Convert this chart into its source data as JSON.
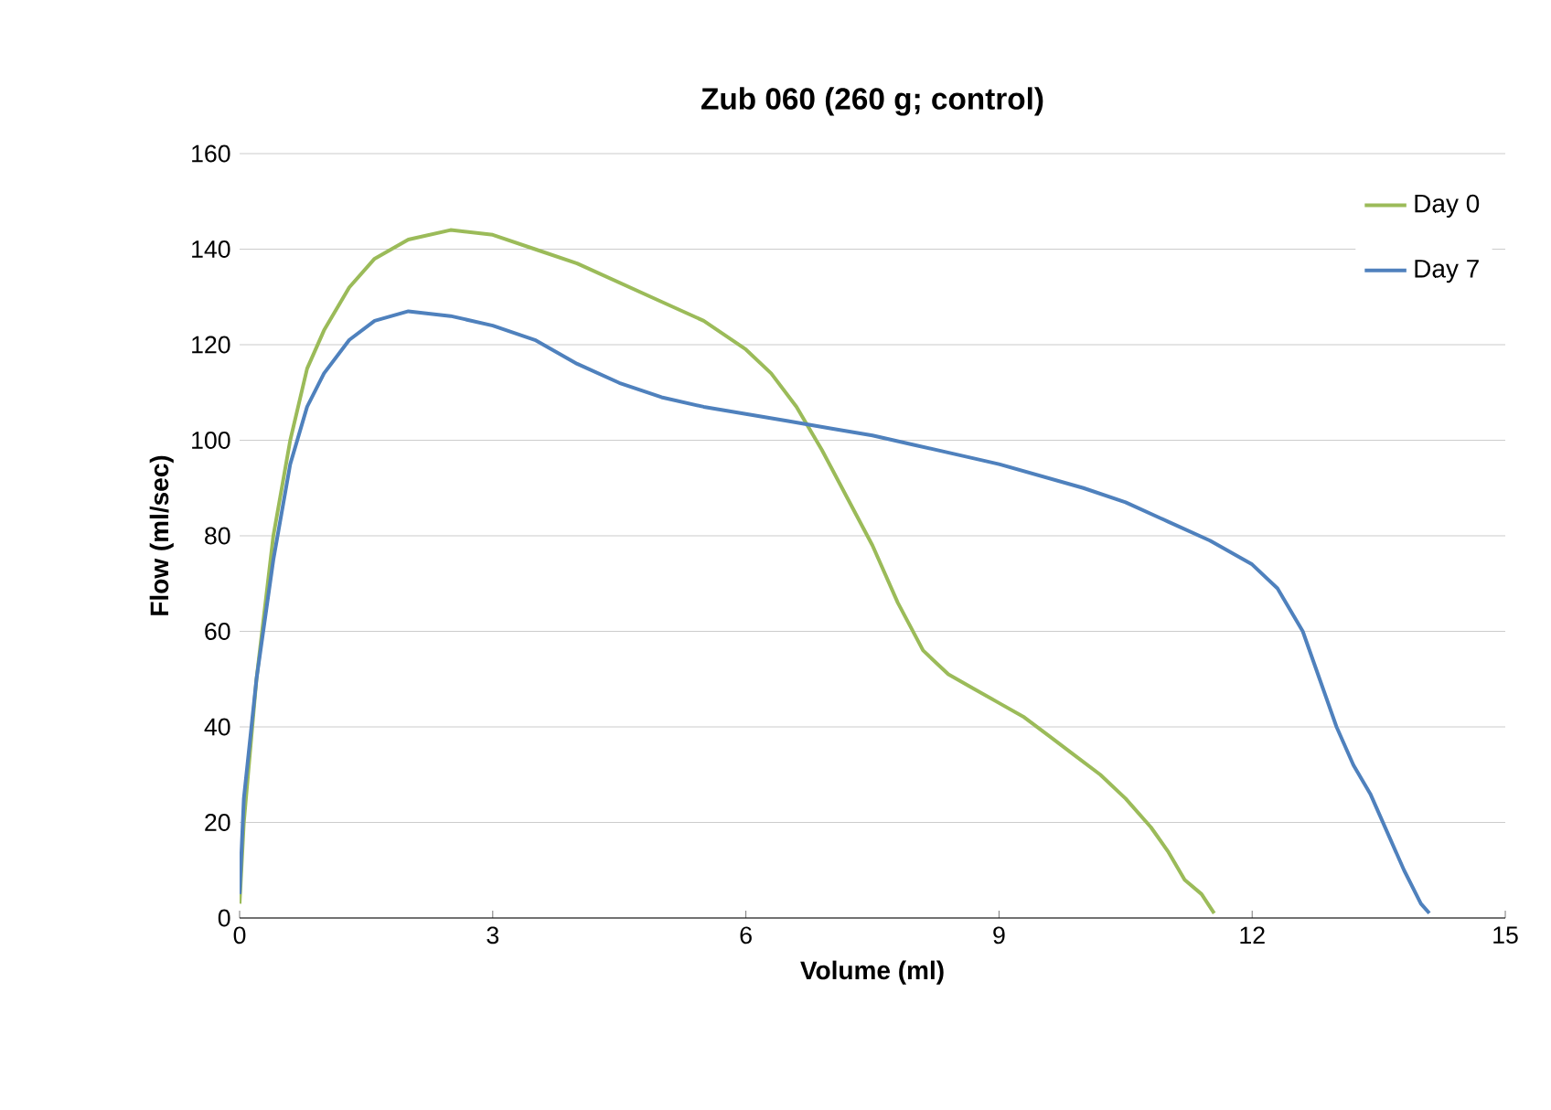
{
  "chart_data": {
    "type": "line",
    "title": "Zub 060 (260 g; control)",
    "xlabel": "Volume (ml)",
    "ylabel": "Flow (ml/sec)",
    "xlim": [
      0,
      15
    ],
    "xticks": [
      0,
      3,
      6,
      9,
      12,
      15
    ],
    "ylim": [
      0,
      160
    ],
    "yticks": [
      0,
      20,
      40,
      60,
      80,
      100,
      120,
      140,
      160
    ],
    "grid": "y",
    "legend": "top right",
    "marker": "none",
    "line_style": "solid",
    "series": [
      {
        "name": "Day 0",
        "color": "#9bbb59",
        "x": [
          0,
          0.05,
          0.2,
          0.4,
          0.6,
          0.8,
          1.0,
          1.3,
          1.6,
          2.0,
          2.5,
          3.0,
          3.5,
          4,
          4.5,
          5,
          5.5,
          6,
          6.3,
          6.6,
          6.9,
          7.2,
          7.5,
          7.8,
          8.1,
          8.4,
          8.7,
          9,
          9.3,
          9.6,
          9.9,
          10.2,
          10.5,
          10.8,
          11.0,
          11.2,
          11.4,
          11.55
        ],
        "values": [
          3,
          20,
          50,
          80,
          100,
          115,
          123,
          132,
          138,
          142,
          144,
          143,
          140,
          137,
          133,
          129,
          125,
          119,
          114,
          107,
          98,
          88,
          78,
          66,
          56,
          51,
          48,
          45,
          42,
          38,
          34,
          30,
          25,
          19,
          14,
          8,
          5,
          1
        ]
      },
      {
        "name": "Day 7",
        "color": "#4f81bd",
        "x": [
          0,
          0.05,
          0.2,
          0.4,
          0.6,
          0.8,
          1.0,
          1.3,
          1.6,
          2.0,
          2.5,
          3,
          3.5,
          4,
          4.5,
          5,
          5.5,
          6,
          6.5,
          7,
          7.5,
          8,
          8.5,
          9,
          9.5,
          10,
          10.5,
          11,
          11.5,
          12,
          12.3,
          12.6,
          12.8,
          13.0,
          13.2,
          13.4,
          13.6,
          13.8,
          14.0,
          14.1
        ],
        "values": [
          5,
          25,
          50,
          75,
          95,
          107,
          114,
          121,
          125,
          127,
          126,
          124,
          121,
          116,
          112,
          109,
          107,
          105.5,
          104,
          102.5,
          101,
          99,
          97,
          95,
          92.5,
          90,
          87,
          83,
          79,
          74,
          69,
          60,
          50,
          40,
          32,
          26,
          18,
          10,
          3,
          1
        ]
      }
    ]
  }
}
